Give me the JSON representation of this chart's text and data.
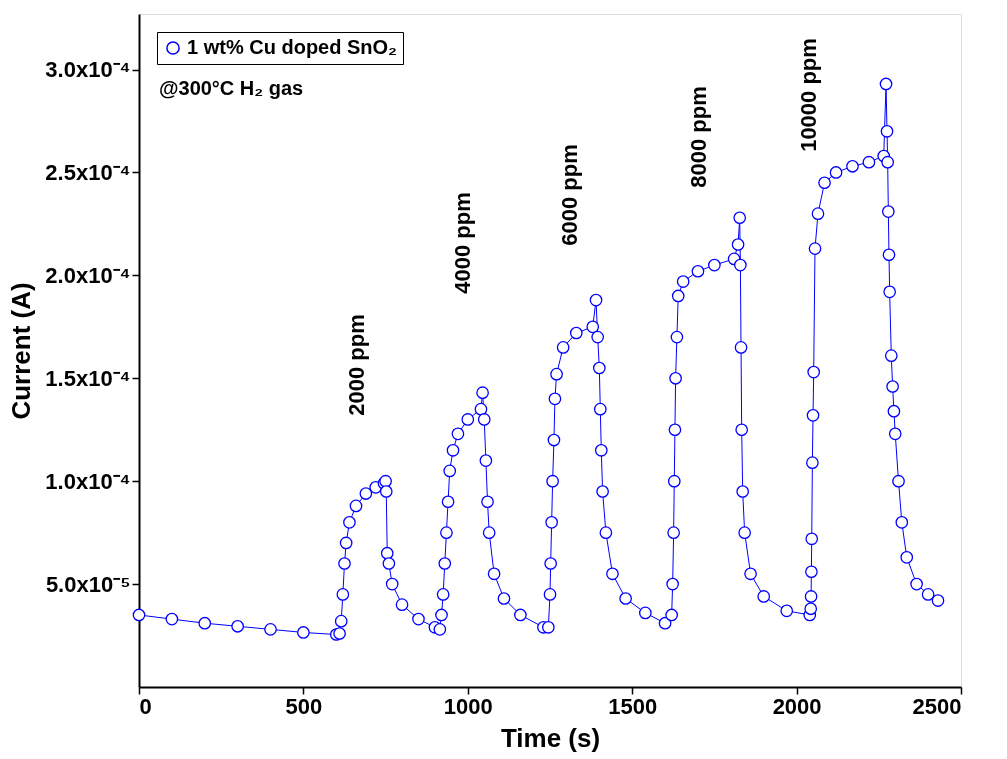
{
  "chart_data": {
    "type": "line",
    "xlabel": "Time (s)",
    "ylabel": "Current (A)",
    "xlim": [
      0,
      2500
    ],
    "xticks": [
      0,
      500,
      1000,
      1500,
      2000,
      2500
    ],
    "ylim": [
      0,
      0.000327
    ],
    "yticks": [
      {
        "value": 5e-05,
        "label": "5.0x10⁻⁵"
      },
      {
        "value": 0.0001,
        "label": "1.0x10⁻⁴"
      },
      {
        "value": 0.00015,
        "label": "1.5x10⁻⁴"
      },
      {
        "value": 0.0002,
        "label": "2.0x10⁻⁴"
      },
      {
        "value": 0.00025,
        "label": "2.5x10⁻⁴"
      },
      {
        "value": 0.0003,
        "label": "3.0x10⁻⁴"
      }
    ],
    "grid": false,
    "legend": "top left",
    "marker": "circle",
    "line_style": "solid",
    "series": [
      {
        "name": "1 wt% Cu doped SnO₂",
        "color": "#0000ff",
        "x": [
          0,
          100,
          200,
          300,
          400,
          500,
          600,
          610,
          615,
          620,
          625,
          630,
          640,
          660,
          690,
          720,
          745,
          750,
          752,
          755,
          760,
          770,
          800,
          850,
          900,
          915,
          920,
          925,
          930,
          935,
          940,
          945,
          955,
          970,
          1000,
          1040,
          1045,
          1050,
          1055,
          1060,
          1065,
          1080,
          1110,
          1160,
          1230,
          1245,
          1250,
          1252,
          1255,
          1258,
          1262,
          1265,
          1270,
          1290,
          1330,
          1380,
          1390,
          1395,
          1400,
          1403,
          1406,
          1410,
          1420,
          1440,
          1480,
          1540,
          1600,
          1620,
          1623,
          1626,
          1628,
          1630,
          1632,
          1636,
          1640,
          1655,
          1700,
          1750,
          1810,
          1822,
          1827,
          1829,
          1831,
          1833,
          1836,
          1842,
          1860,
          1900,
          1970,
          2040,
          2043,
          2044,
          2045,
          2046,
          2048,
          2050,
          2052,
          2056,
          2065,
          2085,
          2120,
          2170,
          2220,
          2265,
          2272,
          2275,
          2277,
          2279,
          2281,
          2283,
          2288,
          2292,
          2296,
          2300,
          2310,
          2320,
          2335,
          2365,
          2400,
          2430
        ],
        "values": [
          3.5e-05,
          3.3e-05,
          3.1e-05,
          2.95e-05,
          2.8e-05,
          2.65e-05,
          2.55e-05,
          2.6e-05,
          3.2e-05,
          4.5e-05,
          6e-05,
          7e-05,
          8e-05,
          8.8e-05,
          9.4e-05,
          9.7e-05,
          9.9e-05,
          0.0001,
          9.5e-05,
          6.5e-05,
          6e-05,
          5e-05,
          4e-05,
          3.3e-05,
          2.9e-05,
          2.8e-05,
          3.5e-05,
          4.5e-05,
          6e-05,
          7.5e-05,
          9e-05,
          0.000105,
          0.000115,
          0.000123,
          0.00013,
          0.000135,
          0.000143,
          0.00013,
          0.00011,
          9e-05,
          7.5e-05,
          5.5e-05,
          4.3e-05,
          3.5e-05,
          2.9e-05,
          2.9e-05,
          4.5e-05,
          6e-05,
          8e-05,
          0.0001,
          0.00012,
          0.00014,
          0.000152,
          0.000165,
          0.000172,
          0.000175,
          0.000188,
          0.00017,
          0.000155,
          0.000135,
          0.000115,
          9.5e-05,
          7.5e-05,
          5.5e-05,
          4.3e-05,
          3.6e-05,
          3.1e-05,
          3.5e-05,
          5e-05,
          7.5e-05,
          0.0001,
          0.000125,
          0.00015,
          0.00017,
          0.00019,
          0.000197,
          0.000202,
          0.000205,
          0.000208,
          0.000215,
          0.000228,
          0.000205,
          0.000165,
          0.000125,
          9.5e-05,
          7.5e-05,
          5.5e-05,
          4.4e-05,
          3.7e-05,
          3.5e-05,
          3.8e-05,
          4.4e-05,
          5.6e-05,
          7.2e-05,
          0.000109,
          0.000132,
          0.000153,
          0.000213,
          0.00023,
          0.000245,
          0.00025,
          0.000253,
          0.000255,
          0.000258,
          0.000293,
          0.00027,
          0.000255,
          0.000231,
          0.00021,
          0.000192,
          0.000161,
          0.000146,
          0.000134,
          0.000123,
          0.0001,
          8e-05,
          6.3e-05,
          5e-05,
          4.5e-05,
          4.2e-05
        ]
      }
    ],
    "annotations": [
      "2000 ppm",
      "4000 ppm",
      "6000 ppm",
      "8000 ppm",
      "10000 ppm",
      "@300°C H₂ gas"
    ]
  }
}
